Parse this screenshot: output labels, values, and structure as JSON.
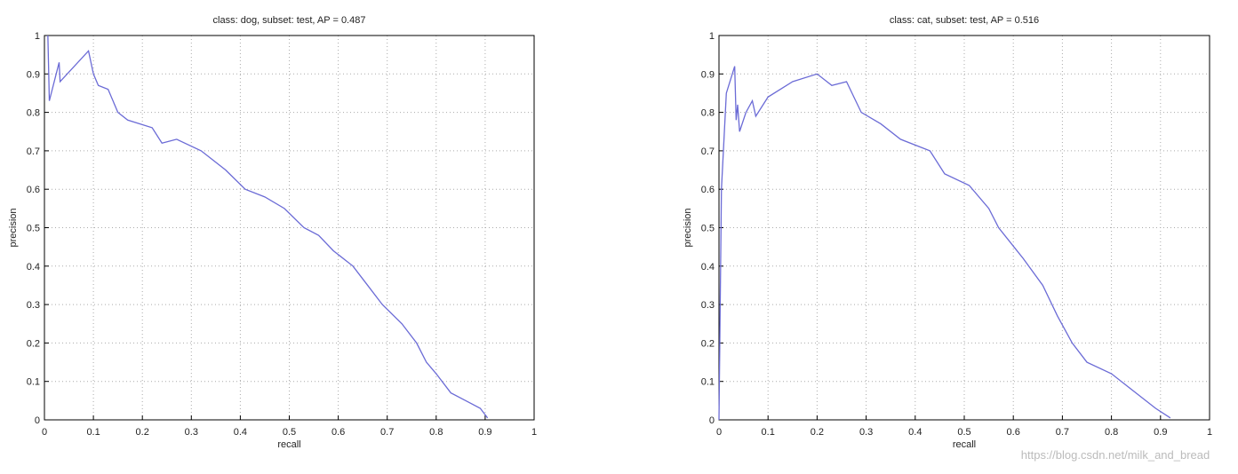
{
  "chart_data": [
    {
      "type": "line",
      "title": "class: dog, subset: test, AP = 0.487",
      "xlabel": "recall",
      "ylabel": "precision",
      "color": "#6b6bd6",
      "grid": true,
      "xlim": [
        0,
        1
      ],
      "ylim": [
        0,
        1
      ],
      "xticks": [
        0,
        0.1,
        0.2,
        0.3,
        0.4,
        0.5,
        0.6,
        0.7,
        0.8,
        0.9,
        1
      ],
      "yticks": [
        0,
        0.1,
        0.2,
        0.3,
        0.4,
        0.5,
        0.6,
        0.7,
        0.8,
        0.9,
        1
      ],
      "x": [
        0.007,
        0.01,
        0.03,
        0.032,
        0.09,
        0.1,
        0.11,
        0.13,
        0.15,
        0.17,
        0.22,
        0.24,
        0.27,
        0.32,
        0.37,
        0.41,
        0.45,
        0.49,
        0.53,
        0.56,
        0.59,
        0.63,
        0.66,
        0.69,
        0.73,
        0.76,
        0.78,
        0.8,
        0.83,
        0.86,
        0.89,
        0.905
      ],
      "values": [
        1,
        0.83,
        0.93,
        0.88,
        0.96,
        0.9,
        0.87,
        0.86,
        0.8,
        0.78,
        0.76,
        0.72,
        0.73,
        0.7,
        0.65,
        0.6,
        0.58,
        0.55,
        0.5,
        0.48,
        0.44,
        0.4,
        0.35,
        0.3,
        0.25,
        0.2,
        0.15,
        0.12,
        0.07,
        0.05,
        0.03,
        0.005
      ]
    },
    {
      "type": "line",
      "title": "class: cat, subset: test, AP = 0.516",
      "xlabel": "recall",
      "ylabel": "precision",
      "color": "#6b6bd6",
      "grid": true,
      "xlim": [
        0,
        1
      ],
      "ylim": [
        0,
        1
      ],
      "xticks": [
        0,
        0.1,
        0.2,
        0.3,
        0.4,
        0.5,
        0.6,
        0.7,
        0.8,
        0.9,
        1
      ],
      "yticks": [
        0,
        0.1,
        0.2,
        0.3,
        0.4,
        0.5,
        0.6,
        0.7,
        0.8,
        0.9,
        1
      ],
      "x": [
        0,
        0.005,
        0.015,
        0.032,
        0.035,
        0.038,
        0.042,
        0.055,
        0.068,
        0.075,
        0.1,
        0.15,
        0.2,
        0.23,
        0.26,
        0.29,
        0.33,
        0.37,
        0.43,
        0.46,
        0.51,
        0.55,
        0.57,
        0.62,
        0.66,
        0.69,
        0.72,
        0.75,
        0.8,
        0.84,
        0.89,
        0.92
      ],
      "values": [
        0,
        0.6,
        0.85,
        0.92,
        0.78,
        0.82,
        0.75,
        0.8,
        0.83,
        0.79,
        0.84,
        0.88,
        0.9,
        0.87,
        0.88,
        0.8,
        0.77,
        0.73,
        0.7,
        0.64,
        0.61,
        0.55,
        0.5,
        0.42,
        0.35,
        0.27,
        0.2,
        0.15,
        0.12,
        0.08,
        0.03,
        0.005
      ]
    }
  ],
  "watermark": "https://blog.csdn.net/milk_and_bread"
}
